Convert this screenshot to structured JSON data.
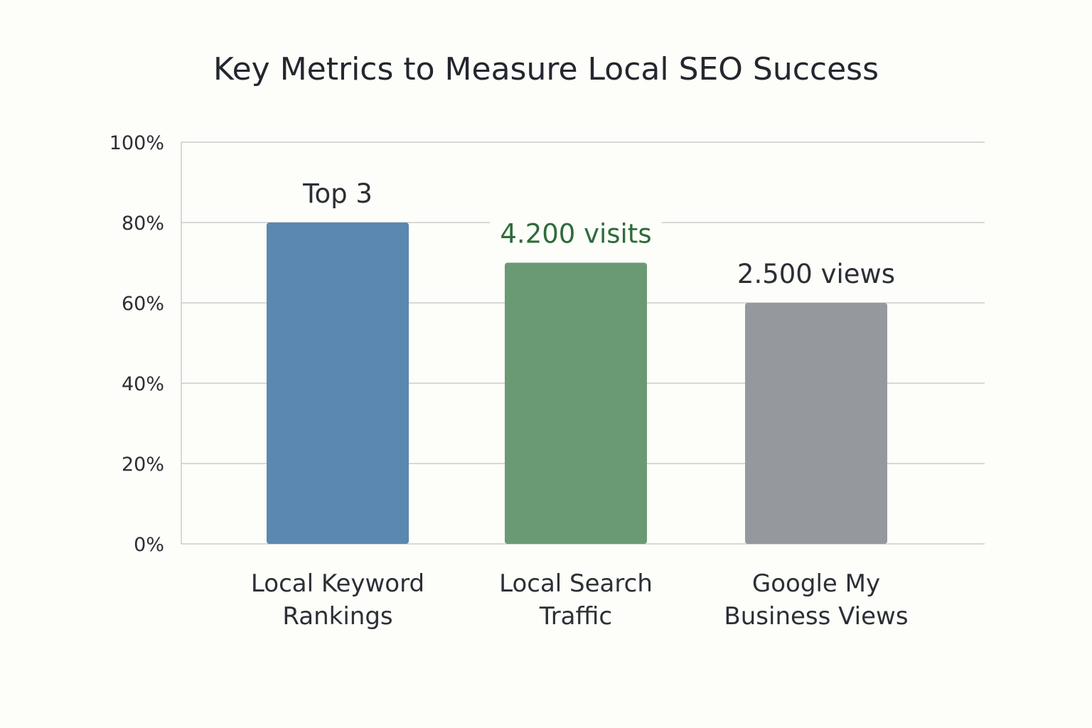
{
  "chart_data": {
    "type": "bar",
    "title": "Key Metrics to Measure Local SEO Success",
    "xlabel": "",
    "ylabel": "",
    "ylim": [
      0,
      100
    ],
    "yticks": [
      0,
      20,
      40,
      60,
      80,
      100
    ],
    "ytick_suffix": "%",
    "grid": true,
    "categories": [
      [
        "Local Keyword",
        "Rankings"
      ],
      [
        "Local Search",
        "Traffic"
      ],
      [
        "Google My",
        "Business Views"
      ]
    ],
    "values": [
      80,
      70,
      60
    ],
    "data_labels": [
      "Top 3",
      "4.200 visits",
      "2.500 views"
    ],
    "colors": [
      "#5a88b0",
      "#6a9a74",
      "#95999d"
    ],
    "label_colors": [
      "#2b2f36",
      "#2e6b3a",
      "#2b2f36"
    ]
  }
}
